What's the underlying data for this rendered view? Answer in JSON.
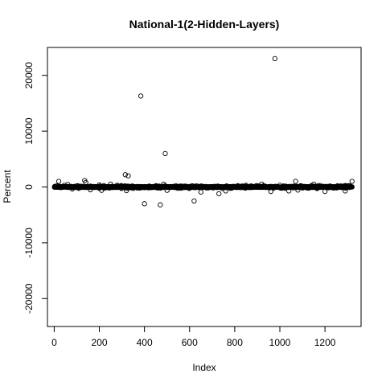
{
  "chart_data": {
    "type": "scatter",
    "title": "National-1(2-Hidden-Layers)",
    "xlabel": "Index",
    "ylabel": "Percent",
    "xlim": [
      -30,
      1360
    ],
    "ylim": [
      -25000,
      25000
    ],
    "xticks": [
      0,
      200,
      400,
      600,
      800,
      1000,
      1200
    ],
    "yticks": [
      -20000,
      -10000,
      0,
      10000,
      20000
    ],
    "grid": false,
    "legend": "none",
    "n_points": 1320,
    "points": [
      [
        20,
        1000
      ],
      [
        45,
        300
      ],
      [
        60,
        450
      ],
      [
        80,
        -350
      ],
      [
        100,
        200
      ],
      [
        135,
        1150
      ],
      [
        140,
        800
      ],
      [
        160,
        -500
      ],
      [
        200,
        350
      ],
      [
        210,
        -600
      ],
      [
        250,
        500
      ],
      [
        280,
        300
      ],
      [
        315,
        2200
      ],
      [
        328,
        2000
      ],
      [
        320,
        -650
      ],
      [
        384,
        16300
      ],
      [
        400,
        -3000
      ],
      [
        470,
        -3200
      ],
      [
        485,
        500
      ],
      [
        492,
        6000
      ],
      [
        500,
        -600
      ],
      [
        620,
        -2500
      ],
      [
        650,
        -900
      ],
      [
        730,
        -1200
      ],
      [
        760,
        -700
      ],
      [
        850,
        300
      ],
      [
        920,
        500
      ],
      [
        960,
        -800
      ],
      [
        978,
        23000
      ],
      [
        1000,
        300
      ],
      [
        1040,
        -700
      ],
      [
        1070,
        1000
      ],
      [
        1080,
        -550
      ],
      [
        1150,
        500
      ],
      [
        1200,
        -800
      ],
      [
        1290,
        -700
      ],
      [
        1320,
        1000
      ]
    ]
  }
}
